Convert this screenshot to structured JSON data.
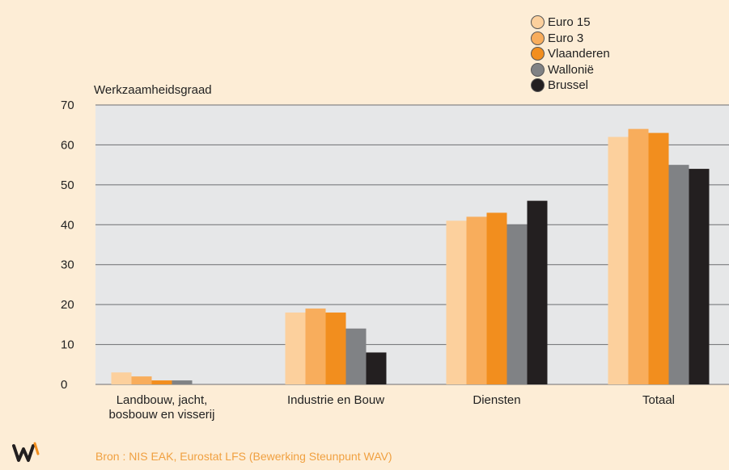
{
  "chart_data": {
    "type": "bar",
    "ylabel": "Werkzaamheidsgraad",
    "ylim": [
      0,
      70
    ],
    "yticks": [
      0,
      10,
      20,
      30,
      40,
      50,
      60,
      70
    ],
    "categories": [
      "Landbouw, jacht,\nbosbouw en visserij",
      "Industrie en Bouw",
      "Diensten",
      "Totaal"
    ],
    "series": [
      {
        "name": "Euro 15",
        "color": "#fcd09d",
        "values": [
          3,
          18,
          41,
          62
        ]
      },
      {
        "name": "Euro 3",
        "color": "#f8ad5c",
        "values": [
          2,
          19,
          42,
          64
        ]
      },
      {
        "name": "Vlaanderen",
        "color": "#f28e1e",
        "values": [
          1,
          18,
          43,
          63
        ]
      },
      {
        "name": "Wallonië",
        "color": "#808285",
        "values": [
          1,
          14,
          40,
          55
        ]
      },
      {
        "name": "Brussel",
        "color": "#231f20",
        "values": [
          0,
          8,
          46,
          54
        ]
      }
    ],
    "grid": true,
    "legend": "top-right"
  },
  "source": "Bron : NIS EAK, Eurostat LFS (Bewerking Steunpunt WAV)",
  "logo_text": "W"
}
